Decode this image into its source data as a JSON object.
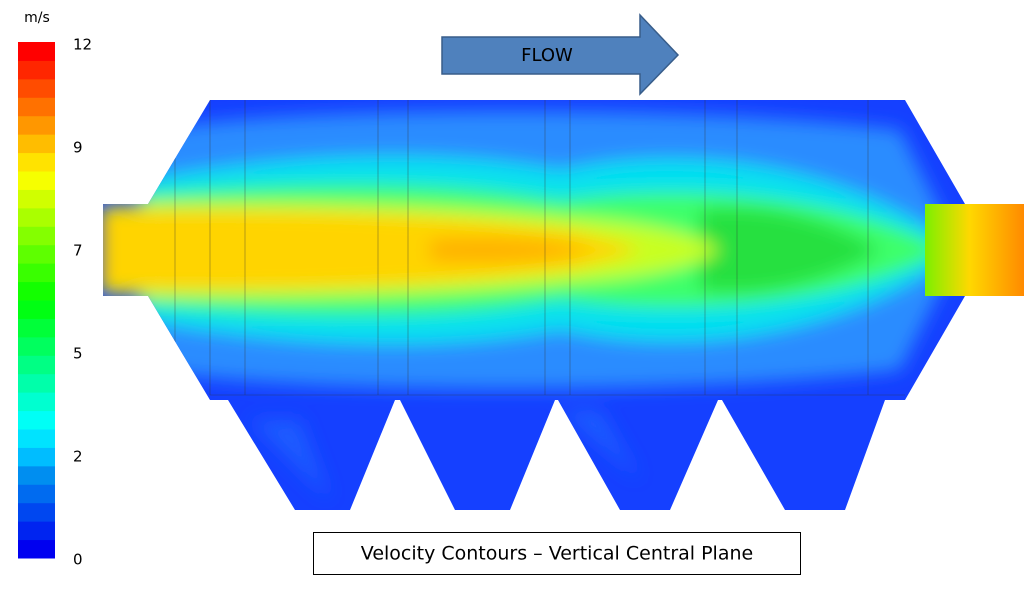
{
  "colorbar": {
    "unit": "m/s",
    "ticks": [
      "12",
      "9",
      "7",
      "5",
      "2",
      "0"
    ]
  },
  "arrow": {
    "label": "FLOW"
  },
  "caption": "Velocity Contours – Vertical Central Plane"
}
